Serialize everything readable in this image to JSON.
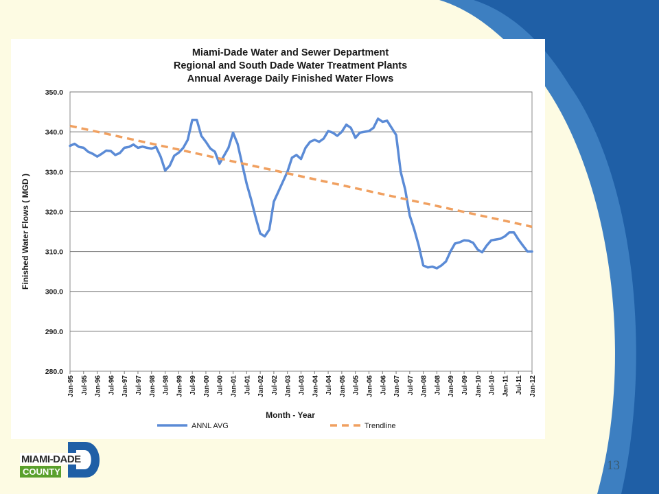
{
  "page": {
    "page_number": "13",
    "logo": {
      "line1": "MIAMI-DADE",
      "line2": "COUNTY",
      "letter": "D"
    },
    "colors": {
      "background": "#fdfbe3",
      "swoosh_dark": "#1f5fa6",
      "swoosh_light": "#3d7fc1",
      "logo_blue": "#1f5fa6",
      "logo_green": "#5aa02c"
    }
  },
  "chart_data": {
    "type": "line",
    "title": [
      "Miami-Dade Water and Sewer Department",
      "Regional and South Dade Water Treatment Plants",
      "Annual Average Daily Finished Water Flows"
    ],
    "xlabel": "Month - Year",
    "ylabel": "Finished Water Flows ( MGD )",
    "ylim": [
      280,
      350
    ],
    "y_ticks": [
      "280.0",
      "290.0",
      "300.0",
      "310.0",
      "320.0",
      "330.0",
      "340.0",
      "350.0"
    ],
    "x_tick_labels": [
      "Jan-95",
      "Jul-95",
      "Jan-96",
      "Jul-96",
      "Jan-97",
      "Jul-97",
      "Jan-98",
      "Jul-98",
      "Jan-99",
      "Jul-99",
      "Jan-00",
      "Jul-00",
      "Jan-01",
      "Jul-01",
      "Jan-02",
      "Jul-02",
      "Jan-03",
      "Jul-03",
      "Jan-04",
      "Jul-04",
      "Jan-05",
      "Jul-05",
      "Jan-06",
      "Jul-06",
      "Jan-07",
      "Jul-07",
      "Jan-08",
      "Jul-08",
      "Jan-09",
      "Jul-09",
      "Jan-10",
      "Jul-10",
      "Jan-11",
      "Jul-11",
      "Jan-12"
    ],
    "grid": true,
    "legend_position": "bottom",
    "series": [
      {
        "name": "ANNL AVG",
        "style": "solid",
        "color": "#5b8bd6",
        "points": [
          [
            "Jan-95",
            336.5
          ],
          [
            "Mar-95",
            337.0
          ],
          [
            "May-95",
            336.2
          ],
          [
            "Jul-95",
            336.0
          ],
          [
            "Sep-95",
            335.0
          ],
          [
            "Nov-95",
            334.5
          ],
          [
            "Jan-96",
            333.8
          ],
          [
            "Mar-96",
            334.5
          ],
          [
            "May-96",
            335.3
          ],
          [
            "Jul-96",
            335.2
          ],
          [
            "Sep-96",
            334.2
          ],
          [
            "Nov-96",
            334.7
          ],
          [
            "Jan-97",
            336.0
          ],
          [
            "Mar-97",
            336.2
          ],
          [
            "May-97",
            336.8
          ],
          [
            "Jul-97",
            336.0
          ],
          [
            "Sep-97",
            336.3
          ],
          [
            "Nov-97",
            336.0
          ],
          [
            "Jan-98",
            335.8
          ],
          [
            "Mar-98",
            336.2
          ],
          [
            "May-98",
            333.8
          ],
          [
            "Jul-98",
            330.3
          ],
          [
            "Sep-98",
            331.5
          ],
          [
            "Nov-98",
            334.0
          ],
          [
            "Jan-99",
            334.8
          ],
          [
            "Mar-99",
            336.0
          ],
          [
            "May-99",
            338.0
          ],
          [
            "Jul-99",
            343.0
          ],
          [
            "Sep-99",
            343.0
          ],
          [
            "Nov-99",
            339.0
          ],
          [
            "Jan-00",
            337.5
          ],
          [
            "Mar-00",
            335.8
          ],
          [
            "May-00",
            335.0
          ],
          [
            "Jul-00",
            332.0
          ],
          [
            "Sep-00",
            334.0
          ],
          [
            "Nov-00",
            336.0
          ],
          [
            "Jan-01",
            339.8
          ],
          [
            "Mar-01",
            337.0
          ],
          [
            "May-01",
            332.0
          ],
          [
            "Jul-01",
            327.0
          ],
          [
            "Sep-01",
            323.0
          ],
          [
            "Nov-01",
            318.5
          ],
          [
            "Jan-02",
            314.5
          ],
          [
            "Mar-02",
            313.8
          ],
          [
            "May-02",
            315.5
          ],
          [
            "Jul-02",
            322.5
          ],
          [
            "Sep-02",
            325.0
          ],
          [
            "Nov-02",
            327.5
          ],
          [
            "Jan-03",
            330.0
          ],
          [
            "Mar-03",
            333.5
          ],
          [
            "May-03",
            334.2
          ],
          [
            "Jul-03",
            333.2
          ],
          [
            "Sep-03",
            336.0
          ],
          [
            "Nov-03",
            337.5
          ],
          [
            "Jan-04",
            338.0
          ],
          [
            "Mar-04",
            337.5
          ],
          [
            "May-04",
            338.3
          ],
          [
            "Jul-04",
            340.2
          ],
          [
            "Sep-04",
            339.8
          ],
          [
            "Nov-04",
            339.0
          ],
          [
            "Jan-05",
            340.0
          ],
          [
            "Mar-05",
            341.8
          ],
          [
            "May-05",
            341.0
          ],
          [
            "Jul-05",
            338.5
          ],
          [
            "Sep-05",
            339.8
          ],
          [
            "Nov-05",
            340.0
          ],
          [
            "Jan-06",
            340.2
          ],
          [
            "Mar-06",
            341.0
          ],
          [
            "May-06",
            343.3
          ],
          [
            "Jul-06",
            342.5
          ],
          [
            "Sep-06",
            342.8
          ],
          [
            "Nov-06",
            341.0
          ],
          [
            "Jan-07",
            339.2
          ],
          [
            "Mar-07",
            330.0
          ],
          [
            "May-07",
            325.5
          ],
          [
            "Jul-07",
            319.0
          ],
          [
            "Sep-07",
            315.5
          ],
          [
            "Nov-07",
            311.5
          ],
          [
            "Jan-08",
            306.5
          ],
          [
            "Mar-08",
            306.0
          ],
          [
            "May-08",
            306.2
          ],
          [
            "Jul-08",
            305.8
          ],
          [
            "Sep-08",
            306.5
          ],
          [
            "Nov-08",
            307.5
          ],
          [
            "Jan-09",
            310.0
          ],
          [
            "Mar-09",
            312.0
          ],
          [
            "May-09",
            312.3
          ],
          [
            "Jul-09",
            312.8
          ],
          [
            "Sep-09",
            312.7
          ],
          [
            "Nov-09",
            312.2
          ],
          [
            "Jan-10",
            310.5
          ],
          [
            "Mar-10",
            309.8
          ],
          [
            "May-10",
            311.5
          ],
          [
            "Jul-10",
            312.8
          ],
          [
            "Sep-10",
            313.0
          ],
          [
            "Nov-10",
            313.2
          ],
          [
            "Jan-11",
            313.8
          ],
          [
            "Mar-11",
            314.8
          ],
          [
            "May-11",
            314.8
          ],
          [
            "Jul-11",
            313.0
          ],
          [
            "Sep-11",
            311.5
          ],
          [
            "Nov-11",
            310.0
          ],
          [
            "Jan-12",
            310.0
          ]
        ]
      },
      {
        "name": "Trendline",
        "style": "dashed",
        "color": "#f0a060",
        "points": [
          [
            "Jan-95",
            341.5
          ],
          [
            "Jan-12",
            316.2
          ]
        ]
      }
    ]
  }
}
